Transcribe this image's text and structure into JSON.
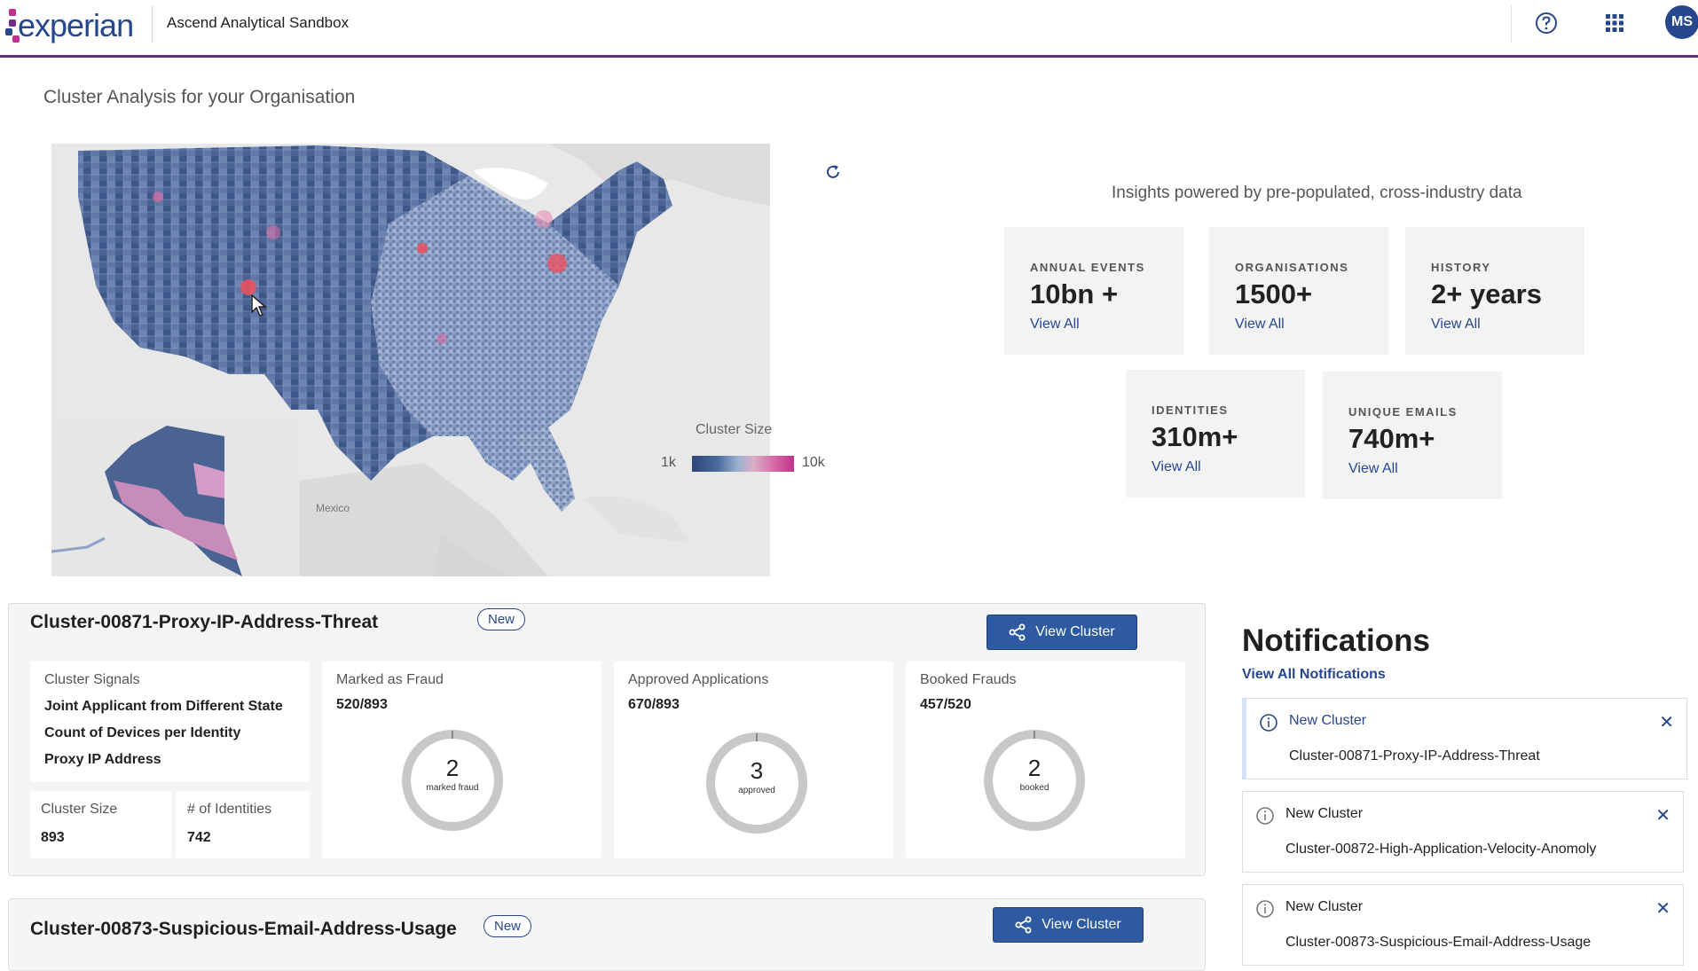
{
  "header": {
    "logo_text": "experian",
    "app_title": "Ascend Analytical Sandbox",
    "avatar_initials": "MS",
    "icons": [
      "help-icon",
      "apps-grid-icon"
    ]
  },
  "page_title": "Cluster Analysis for your Organisation",
  "map": {
    "place_label": "Mexico",
    "legend_title": "Cluster Size",
    "legend_min": "1k",
    "legend_max": "10k",
    "legend_colors": [
      "#2e4777",
      "#9bb0cf",
      "#d86aa5",
      "#c0318b"
    ]
  },
  "insights": {
    "title": "Insights powered by pre-populated, cross-industry data",
    "stats": [
      {
        "label": "ANNUAL EVENTS",
        "value": "10bn +",
        "link": "View All"
      },
      {
        "label": "ORGANISATIONS",
        "value": "1500+",
        "link": "View All"
      },
      {
        "label": "HISTORY",
        "value": "2+ years",
        "link": "View All"
      },
      {
        "label": "IDENTITIES",
        "value": "310m+",
        "link": "View All"
      },
      {
        "label": "UNIQUE EMAILS",
        "value": "740m+",
        "link": "View All"
      }
    ]
  },
  "clusters": [
    {
      "name": "Cluster-00871-Proxy-IP-Address-Threat",
      "badge": "New",
      "button": "View Cluster",
      "signals_label": "Cluster Signals",
      "signals": [
        "Joint Applicant from Different State",
        "Count of Devices per Identity",
        "Proxy IP Address"
      ],
      "size_label": "Cluster Size",
      "size_value": "893",
      "identities_label": "# of Identities",
      "identities_value": "742",
      "metrics": [
        {
          "label": "Marked as Fraud",
          "value": "520/893",
          "donut_num": "2",
          "donut_caption": "marked fraud"
        },
        {
          "label": "Approved Applications",
          "value": "670/893",
          "donut_num": "3",
          "donut_caption": "approved"
        },
        {
          "label": "Booked Frauds",
          "value": "457/520",
          "donut_num": "2",
          "donut_caption": "booked"
        }
      ]
    },
    {
      "name": "Cluster-00873-Suspicious-Email-Address-Usage",
      "badge": "New",
      "button": "View Cluster"
    }
  ],
  "notifications": {
    "title": "Notifications",
    "view_all": "View All Notifications",
    "items": [
      {
        "title": "New Cluster",
        "body": "Cluster-00871-Proxy-IP-Address-Threat"
      },
      {
        "title": "New Cluster",
        "body": "Cluster-00872-High-Application-Velocity-Anomoly"
      },
      {
        "title": "New Cluster",
        "body": "Cluster-00873-Suspicious-Email-Address-Usage"
      }
    ]
  }
}
